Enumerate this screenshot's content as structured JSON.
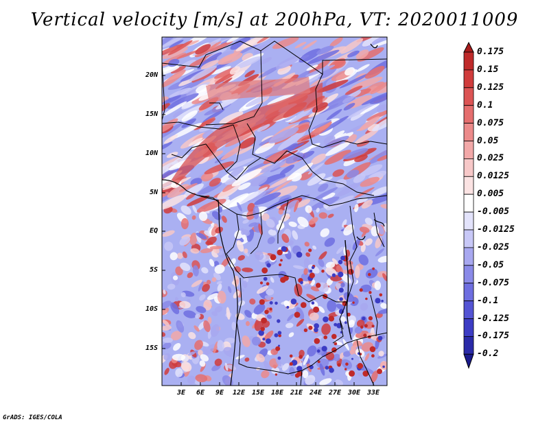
{
  "title": "Vertical velocity [m/s] at 200hPa, VT: 2020011009",
  "credit": "GrADS: IGES/COLA",
  "map": {
    "variable": "Vertical velocity",
    "units": "m/s",
    "level": "200hPa",
    "valid_time": "2020011009",
    "lat_labels": [
      "20N",
      "15N",
      "10N",
      "5N",
      "EQ",
      "5S",
      "10S",
      "15S"
    ],
    "lon_labels": [
      "3E",
      "6E",
      "9E",
      "12E",
      "15E",
      "18E",
      "21E",
      "24E",
      "27E",
      "30E",
      "33E"
    ]
  },
  "colorbar": {
    "labels": [
      "0.175",
      "0.15",
      "0.125",
      "0.1",
      "0.075",
      "0.05",
      "0.025",
      "0.0125",
      "0.005",
      "-0.005",
      "-0.0125",
      "-0.025",
      "-0.05",
      "-0.075",
      "-0.1",
      "-0.125",
      "-0.175",
      "-0.2"
    ],
    "colors": [
      "#a81c1c",
      "#bf2a2a",
      "#d03c3c",
      "#dc5454",
      "#e56e6e",
      "#ec8a8a",
      "#f2a8a8",
      "#f7c8c8",
      "#fbe3e3",
      "#ffffff",
      "#e3e3fb",
      "#c8c8f7",
      "#a8a8f0",
      "#8a8ae8",
      "#6e6ee0",
      "#5454d4",
      "#3c3cc4",
      "#2a2aa8",
      "#1a1a8c"
    ]
  }
}
